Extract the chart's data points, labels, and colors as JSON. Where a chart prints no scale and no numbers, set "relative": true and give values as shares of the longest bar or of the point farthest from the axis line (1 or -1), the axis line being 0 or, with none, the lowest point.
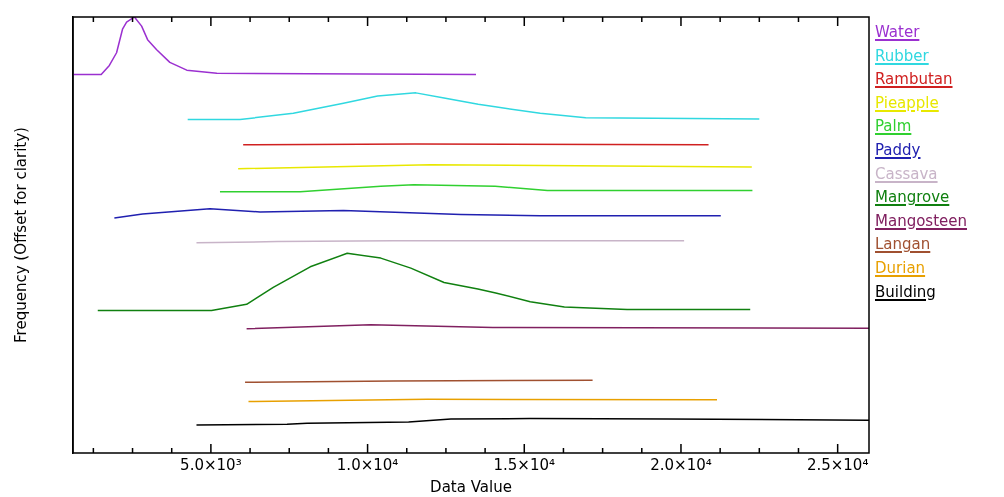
{
  "chart_data": {
    "type": "line",
    "xlabel": "Data Value",
    "ylabel": "Frequency (Offset for clarity)",
    "relative": true,
    "legend": "right",
    "grid": false,
    "xlim": [
      600,
      26000
    ],
    "xticks": [
      {
        "value": 1250,
        "label": null
      },
      {
        "value": 2500,
        "label": null
      },
      {
        "value": 3750,
        "label": null
      },
      {
        "value": 5000,
        "label": "5.0×10³"
      },
      {
        "value": 6250,
        "label": null
      },
      {
        "value": 7500,
        "label": null
      },
      {
        "value": 8750,
        "label": null
      },
      {
        "value": 10000,
        "label": "1.0×10⁴"
      },
      {
        "value": 11250,
        "label": null
      },
      {
        "value": 12500,
        "label": null
      },
      {
        "value": 13750,
        "label": null
      },
      {
        "value": 15000,
        "label": "1.5×10⁴"
      },
      {
        "value": 16250,
        "label": null
      },
      {
        "value": 17500,
        "label": null
      },
      {
        "value": 18750,
        "label": null
      },
      {
        "value": 20000,
        "label": "2.0×10⁴"
      },
      {
        "value": 21250,
        "label": null
      },
      {
        "value": 22500,
        "label": null
      },
      {
        "value": 23750,
        "label": null
      },
      {
        "value": 25000,
        "label": "2.5×10⁴"
      }
    ],
    "series": [
      {
        "name": "Water",
        "color": "#9b30d0",
        "x": [
          600,
          1500,
          1760,
          1990,
          2180,
          2310,
          2560,
          2790,
          2980,
          3270,
          3690,
          4230,
          5190,
          13460
        ],
        "values": [
          0.868,
          0.868,
          0.889,
          0.918,
          0.972,
          0.988,
          1,
          0.979,
          0.948,
          0.925,
          0.896,
          0.878,
          0.871,
          0.868
        ]
      },
      {
        "name": "Rubber",
        "color": "#30d8e0",
        "x": [
          4260,
          5930,
          7630,
          9230,
          10320,
          11540,
          12440,
          13530,
          14070,
          15510,
          16960,
          22500
        ],
        "values": [
          0.765,
          0.765,
          0.779,
          0.802,
          0.819,
          0.826,
          0.814,
          0.8,
          0.794,
          0.779,
          0.769,
          0.766
        ]
      },
      {
        "name": "Rambutan",
        "color": "#d02020",
        "x": [
          6030,
          11500,
          20880
        ],
        "values": [
          0.707,
          0.709,
          0.707
        ]
      },
      {
        "name": "Pieapple",
        "color": "#e8e800",
        "x": [
          5870,
          12000,
          22260
        ],
        "values": [
          0.652,
          0.661,
          0.656
        ]
      },
      {
        "name": "Palm",
        "color": "#30d030",
        "x": [
          5290,
          7850,
          10420,
          11470,
          14070,
          15740,
          22280
        ],
        "values": [
          0.599,
          0.599,
          0.612,
          0.615,
          0.612,
          0.602,
          0.602
        ]
      },
      {
        "name": "Paddy",
        "color": "#2020b0",
        "x": [
          1920,
          2820,
          4970,
          6570,
          9230,
          12980,
          15510,
          21270
        ],
        "values": [
          0.539,
          0.548,
          0.56,
          0.553,
          0.556,
          0.547,
          0.544,
          0.544
        ]
      },
      {
        "name": "Cassava",
        "color": "#c8b4c8",
        "x": [
          4540,
          7120,
          10830,
          20100
        ],
        "values": [
          0.482,
          0.485,
          0.487,
          0.487
        ]
      },
      {
        "name": "Mangrove",
        "color": "#108010",
        "x": [
          1390,
          5020,
          6140,
          6990,
          8170,
          9350,
          10420,
          11380,
          12440,
          13520,
          14090,
          15190,
          16280,
          18280,
          22210
        ],
        "values": [
          0.327,
          0.327,
          0.341,
          0.38,
          0.427,
          0.458,
          0.447,
          0.424,
          0.391,
          0.376,
          0.367,
          0.347,
          0.335,
          0.329,
          0.329
        ]
      },
      {
        "name": "Mangosteen",
        "color": "#802060",
        "x": [
          6140,
          10100,
          14000,
          26000
        ],
        "values": [
          0.285,
          0.294,
          0.288,
          0.286
        ]
      },
      {
        "name": "Langan",
        "color": "#a05030",
        "x": [
          6090,
          10830,
          17180
        ],
        "values": [
          0.162,
          0.165,
          0.167
        ]
      },
      {
        "name": "Durian",
        "color": "#e8a000",
        "x": [
          6200,
          11910,
          21150
        ],
        "values": [
          0.118,
          0.123,
          0.122
        ]
      },
      {
        "name": "Building",
        "color": "#000000",
        "x": [
          4540,
          7430,
          8070,
          11310,
          12660,
          15190,
          19610,
          26000
        ],
        "values": [
          0.064,
          0.066,
          0.068,
          0.071,
          0.078,
          0.079,
          0.078,
          0.075
        ]
      }
    ]
  }
}
